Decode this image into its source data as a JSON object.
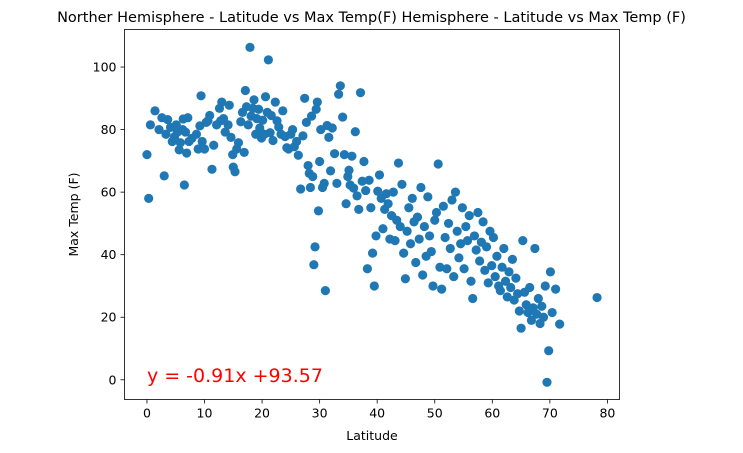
{
  "chart_data": {
    "type": "scatter",
    "title": "Norther Hemisphere - Latitude vs Max Temp(F) Hemisphere - Latitude vs Max Temp (F)",
    "xlabel": "Latitude",
    "ylabel": "Max Temp (F)",
    "xlim": [
      -3.9,
      82.1
    ],
    "ylim": [
      -6.3,
      112.0
    ],
    "xticks": [
      0,
      10,
      20,
      30,
      40,
      50,
      60,
      70,
      80
    ],
    "yticks": [
      0,
      20,
      40,
      60,
      80,
      100
    ],
    "grid": false,
    "marker_color": "#1f77b4",
    "annotation": {
      "text": "y = -0.91x +93.57",
      "color": "#ff0000",
      "x": 0,
      "y": 0
    },
    "points": [
      [
        0.0,
        72.0
      ],
      [
        0.3,
        58.0
      ],
      [
        0.6,
        81.5
      ],
      [
        1.4,
        86.0
      ],
      [
        2.1,
        80.0
      ],
      [
        2.6,
        83.8
      ],
      [
        3.0,
        65.2
      ],
      [
        3.3,
        78.5
      ],
      [
        3.6,
        83.2
      ],
      [
        4.1,
        80.7
      ],
      [
        4.4,
        76.2
      ],
      [
        4.8,
        77.7
      ],
      [
        5.1,
        81.5
      ],
      [
        5.3,
        79.2
      ],
      [
        5.6,
        73.5
      ],
      [
        5.8,
        75.8
      ],
      [
        6.2,
        80.0
      ],
      [
        6.3,
        83.4
      ],
      [
        6.5,
        62.3
      ],
      [
        6.7,
        79.2
      ],
      [
        6.9,
        72.5
      ],
      [
        7.1,
        83.8
      ],
      [
        7.3,
        76.2
      ],
      [
        7.8,
        77.2
      ],
      [
        8.6,
        78.5
      ],
      [
        8.9,
        73.8
      ],
      [
        9.2,
        81.2
      ],
      [
        9.4,
        90.8
      ],
      [
        9.6,
        76.2
      ],
      [
        10.0,
        73.8
      ],
      [
        10.3,
        82.3
      ],
      [
        10.6,
        82.8
      ],
      [
        10.9,
        84.5
      ],
      [
        11.3,
        67.3
      ],
      [
        11.6,
        75.0
      ],
      [
        12.1,
        81.5
      ],
      [
        12.6,
        86.8
      ],
      [
        12.8,
        82.8
      ],
      [
        13.0,
        88.8
      ],
      [
        13.3,
        83.5
      ],
      [
        13.6,
        79.2
      ],
      [
        14.1,
        81.5
      ],
      [
        14.3,
        87.8
      ],
      [
        14.6,
        77.5
      ],
      [
        14.9,
        72.0
      ],
      [
        15.0,
        68.0
      ],
      [
        15.3,
        66.5
      ],
      [
        15.6,
        73.8
      ],
      [
        15.9,
        75.8
      ],
      [
        16.3,
        82.5
      ],
      [
        16.6,
        85.5
      ],
      [
        16.9,
        72.7
      ],
      [
        17.1,
        92.5
      ],
      [
        17.3,
        87.3
      ],
      [
        17.6,
        81.5
      ],
      [
        17.9,
        106.3
      ],
      [
        18.1,
        84.3
      ],
      [
        18.4,
        86.8
      ],
      [
        18.6,
        89.5
      ],
      [
        18.9,
        78.5
      ],
      [
        19.1,
        83.5
      ],
      [
        19.4,
        86.5
      ],
      [
        19.6,
        80.5
      ],
      [
        19.9,
        77.3
      ],
      [
        20.1,
        83.0
      ],
      [
        20.4,
        78.5
      ],
      [
        20.6,
        90.5
      ],
      [
        20.9,
        85.5
      ],
      [
        21.1,
        102.3
      ],
      [
        21.4,
        79.0
      ],
      [
        21.6,
        84.5
      ],
      [
        21.9,
        76.5
      ],
      [
        22.3,
        88.8
      ],
      [
        22.6,
        82.8
      ],
      [
        22.9,
        80.8
      ],
      [
        23.3,
        78.5
      ],
      [
        23.6,
        86.0
      ],
      [
        24.0,
        77.8
      ],
      [
        24.3,
        74.2
      ],
      [
        24.6,
        73.8
      ],
      [
        25.0,
        78.5
      ],
      [
        25.3,
        80.0
      ],
      [
        25.6,
        74.5
      ],
      [
        26.0,
        76.2
      ],
      [
        26.3,
        71.8
      ],
      [
        26.7,
        61.0
      ],
      [
        27.1,
        78.0
      ],
      [
        27.4,
        90.0
      ],
      [
        27.7,
        82.3
      ],
      [
        28.0,
        68.5
      ],
      [
        28.2,
        66.0
      ],
      [
        28.4,
        61.5
      ],
      [
        28.6,
        84.3
      ],
      [
        28.8,
        65.0
      ],
      [
        29.0,
        36.8
      ],
      [
        29.2,
        42.5
      ],
      [
        29.4,
        86.5
      ],
      [
        29.6,
        88.8
      ],
      [
        29.8,
        54.0
      ],
      [
        30.0,
        69.8
      ],
      [
        30.2,
        80.0
      ],
      [
        30.5,
        61.5
      ],
      [
        30.8,
        62.8
      ],
      [
        31.0,
        28.5
      ],
      [
        31.3,
        81.3
      ],
      [
        31.6,
        77.5
      ],
      [
        31.9,
        66.8
      ],
      [
        32.2,
        80.5
      ],
      [
        32.6,
        72.3
      ],
      [
        33.0,
        62.8
      ],
      [
        33.3,
        91.3
      ],
      [
        33.6,
        94.0
      ],
      [
        34.0,
        84.0
      ],
      [
        34.3,
        72.0
      ],
      [
        34.6,
        56.3
      ],
      [
        34.9,
        65.0
      ],
      [
        35.1,
        67.0
      ],
      [
        35.3,
        62.3
      ],
      [
        35.6,
        71.5
      ],
      [
        35.9,
        61.3
      ],
      [
        36.2,
        79.3
      ],
      [
        36.5,
        58.8
      ],
      [
        36.8,
        54.5
      ],
      [
        37.1,
        91.8
      ],
      [
        37.4,
        63.5
      ],
      [
        37.7,
        69.8
      ],
      [
        38.0,
        60.5
      ],
      [
        38.3,
        35.5
      ],
      [
        38.6,
        63.8
      ],
      [
        38.9,
        55.0
      ],
      [
        39.2,
        40.5
      ],
      [
        39.5,
        30.0
      ],
      [
        39.8,
        46.0
      ],
      [
        40.1,
        60.3
      ],
      [
        40.4,
        65.5
      ],
      [
        40.7,
        58.0
      ],
      [
        41.0,
        48.3
      ],
      [
        41.3,
        54.5
      ],
      [
        41.6,
        59.5
      ],
      [
        41.9,
        56.3
      ],
      [
        42.2,
        45.0
      ],
      [
        42.5,
        52.5
      ],
      [
        42.8,
        60.0
      ],
      [
        43.1,
        44.5
      ],
      [
        43.4,
        51.0
      ],
      [
        43.7,
        69.3
      ],
      [
        44.0,
        49.0
      ],
      [
        44.3,
        62.5
      ],
      [
        44.6,
        40.5
      ],
      [
        44.9,
        32.3
      ],
      [
        45.2,
        47.5
      ],
      [
        45.5,
        55.0
      ],
      [
        45.8,
        43.5
      ],
      [
        46.1,
        58.0
      ],
      [
        46.4,
        50.5
      ],
      [
        46.7,
        37.5
      ],
      [
        47.0,
        52.0
      ],
      [
        47.3,
        45.0
      ],
      [
        47.6,
        61.5
      ],
      [
        47.9,
        33.5
      ],
      [
        48.2,
        49.0
      ],
      [
        48.5,
        39.5
      ],
      [
        48.8,
        58.5
      ],
      [
        49.1,
        46.0
      ],
      [
        49.4,
        41.0
      ],
      [
        49.7,
        30.0
      ],
      [
        50.0,
        51.0
      ],
      [
        50.3,
        53.5
      ],
      [
        50.6,
        69.0
      ],
      [
        50.9,
        36.0
      ],
      [
        51.2,
        29.0
      ],
      [
        51.5,
        55.5
      ],
      [
        51.8,
        45.5
      ],
      [
        52.1,
        35.5
      ],
      [
        52.4,
        50.0
      ],
      [
        52.7,
        42.0
      ],
      [
        53.0,
        57.5
      ],
      [
        53.3,
        33.0
      ],
      [
        53.6,
        60.0
      ],
      [
        53.9,
        47.5
      ],
      [
        54.2,
        39.0
      ],
      [
        54.5,
        43.5
      ],
      [
        54.8,
        55.0
      ],
      [
        55.1,
        35.5
      ],
      [
        55.4,
        49.0
      ],
      [
        55.7,
        44.5
      ],
      [
        56.0,
        52.5
      ],
      [
        56.3,
        31.5
      ],
      [
        56.6,
        26.0
      ],
      [
        56.9,
        46.0
      ],
      [
        57.2,
        41.5
      ],
      [
        57.5,
        53.5
      ],
      [
        57.8,
        38.0
      ],
      [
        58.1,
        44.0
      ],
      [
        58.4,
        50.5
      ],
      [
        58.7,
        35.0
      ],
      [
        59.0,
        42.5
      ],
      [
        59.3,
        31.0
      ],
      [
        59.6,
        47.5
      ],
      [
        59.9,
        36.5
      ],
      [
        60.2,
        45.5
      ],
      [
        60.5,
        33.0
      ],
      [
        60.8,
        39.5
      ],
      [
        61.1,
        30.0
      ],
      [
        61.4,
        28.5
      ],
      [
        61.7,
        36.0
      ],
      [
        62.0,
        42.0
      ],
      [
        62.3,
        31.5
      ],
      [
        62.6,
        26.5
      ],
      [
        62.9,
        34.5
      ],
      [
        63.2,
        29.5
      ],
      [
        63.5,
        38.5
      ],
      [
        63.8,
        25.5
      ],
      [
        64.1,
        32.5
      ],
      [
        64.4,
        27.5
      ],
      [
        64.7,
        22.0
      ],
      [
        65.0,
        16.5
      ],
      [
        65.3,
        44.5
      ],
      [
        65.6,
        28.0
      ],
      [
        65.9,
        24.0
      ],
      [
        66.2,
        21.5
      ],
      [
        66.5,
        29.5
      ],
      [
        66.8,
        19.0
      ],
      [
        67.1,
        23.0
      ],
      [
        67.4,
        42.0
      ],
      [
        67.7,
        21.0
      ],
      [
        68.0,
        26.0
      ],
      [
        68.3,
        18.0
      ],
      [
        68.6,
        23.5
      ],
      [
        68.9,
        20.0
      ],
      [
        69.2,
        30.0
      ],
      [
        69.5,
        -0.8
      ],
      [
        69.8,
        9.3
      ],
      [
        70.1,
        34.5
      ],
      [
        70.4,
        21.5
      ],
      [
        71.0,
        29.0
      ],
      [
        71.7,
        17.8
      ],
      [
        78.2,
        26.3
      ]
    ]
  }
}
